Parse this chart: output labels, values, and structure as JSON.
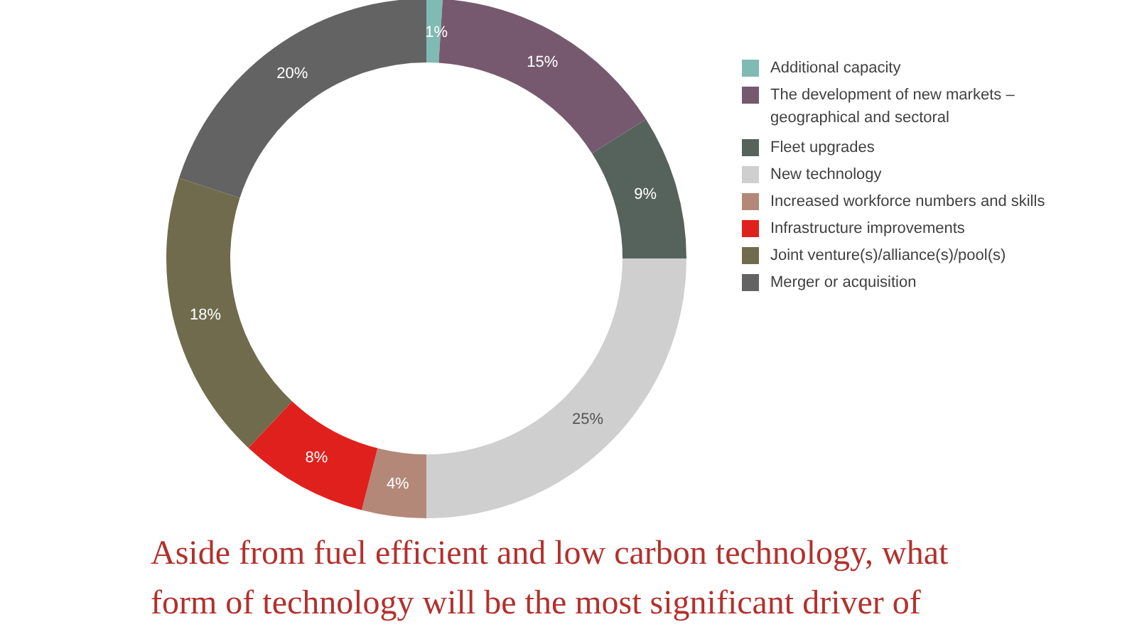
{
  "chart_data": {
    "type": "donut",
    "title": "Aside from fuel efficient and low carbon technology, what form of technology will be the most significant driver of",
    "categories": [
      "Additional capacity",
      "The development of new markets – geographical and sectoral",
      "Fleet upgrades",
      "New technology",
      "Increased workforce numbers and skills",
      "Infrastructure improvements",
      "Joint venture(s)/alliance(s)/pool(s)",
      "Merger or acquisition"
    ],
    "values": [
      1,
      15,
      9,
      25,
      4,
      8,
      18,
      20
    ],
    "colors": [
      "#7fbab3",
      "#76596f",
      "#56625c",
      "#cfcfcf",
      "#b38878",
      "#e0201c",
      "#6f6b4c",
      "#636363"
    ],
    "value_labels": [
      "1%",
      "15%",
      "9%",
      "25%",
      "4%",
      "8%",
      "18%",
      "20%"
    ],
    "legend": "right"
  }
}
